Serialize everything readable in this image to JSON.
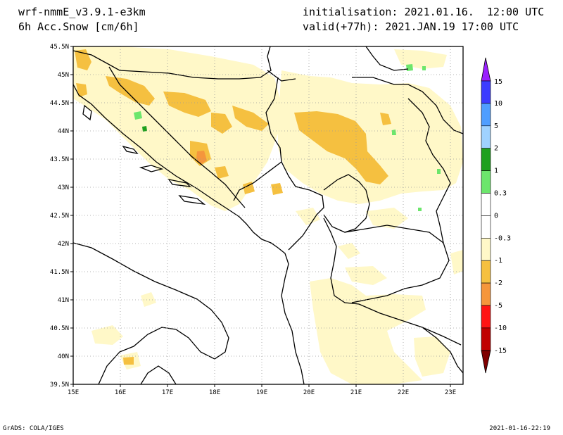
{
  "header": {
    "model": "wrf-nmmE_v3.9.1-e3km",
    "field": "6h Acc.Snow [cm/6h]",
    "init": "initialisation: 2021.01.16.  12:00 UTC",
    "valid": "valid(+77h): 2021.JAN.19 17:00 UTC"
  },
  "axes": {
    "lat_labels": [
      "45.5N",
      "45N",
      "44.5N",
      "44N",
      "43.5N",
      "43N",
      "42.5N",
      "42N",
      "41.5N",
      "41N",
      "40.5N",
      "40N",
      "39.5N"
    ],
    "lon_labels": [
      "15E",
      "16E",
      "17E",
      "18E",
      "19E",
      "20E",
      "21E",
      "22E",
      "23E"
    ],
    "lat_range": [
      39.5,
      45.5
    ],
    "lon_range": [
      15,
      23.3
    ]
  },
  "legend": {
    "top_label": "15",
    "items": [
      {
        "label": "10",
        "color": "#3c3cff"
      },
      {
        "label": "5",
        "color": "#4f9eff"
      },
      {
        "label": "2",
        "color": "#9fd2ff"
      },
      {
        "label": "1",
        "color": "#1ea01e"
      },
      {
        "label": "0.3",
        "color": "#6ce66c"
      },
      {
        "label": "0",
        "color": "#ffffff"
      },
      {
        "label": "-0.3",
        "color": "#ffffff"
      },
      {
        "label": "-1",
        "color": "#fff8c8"
      },
      {
        "label": "-2",
        "color": "#f5c040"
      },
      {
        "label": "-5",
        "color": "#f5963c"
      },
      {
        "label": "-10",
        "color": "#ff1414"
      },
      {
        "label": "-15",
        "color": "#c00000"
      }
    ],
    "top_color": "#9a20ff",
    "bottom_color": "#800000"
  },
  "footer": {
    "left": "GrADS: COLA/IGES",
    "right": "2021-01-16-22:19"
  }
}
